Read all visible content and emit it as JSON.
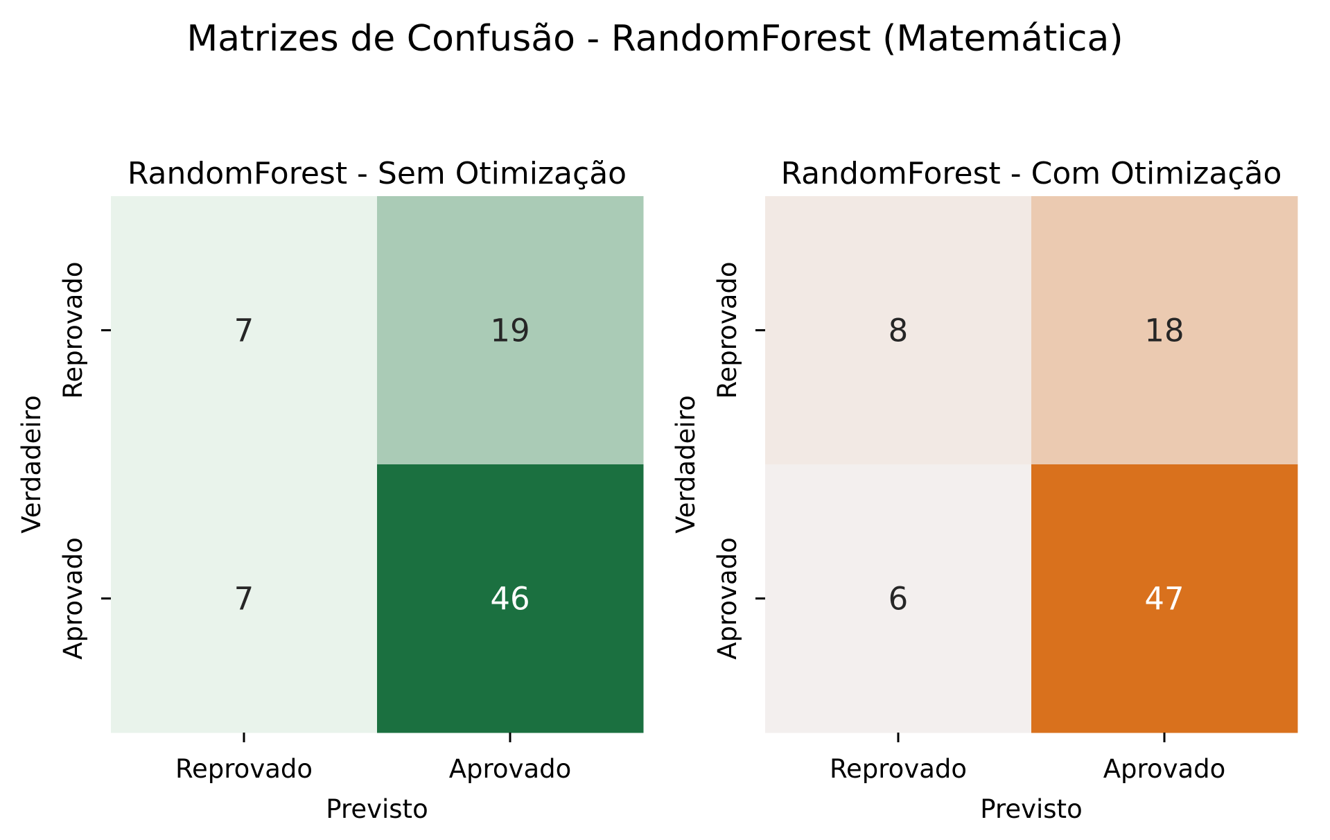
{
  "figure_title": "Matrizes de Confusão - RandomForest (Matemática)",
  "chart_data": [
    {
      "type": "heatmap",
      "title": "RandomForest - Sem Otimização",
      "xlabel": "Previsto",
      "ylabel": "Verdadeiro",
      "x_categories": [
        "Reprovado",
        "Aprovado"
      ],
      "y_categories": [
        "Reprovado",
        "Aprovado"
      ],
      "values": [
        [
          7,
          19
        ],
        [
          7,
          46
        ]
      ],
      "colorscale": {
        "low": "#e9f3eb",
        "high": "#1b7040"
      },
      "colorbar": false,
      "annotated": true
    },
    {
      "type": "heatmap",
      "title": "RandomForest - Com Otimização",
      "xlabel": "Previsto",
      "ylabel": "Verdadeiro",
      "x_categories": [
        "Reprovado",
        "Aprovado"
      ],
      "y_categories": [
        "Reprovado",
        "Aprovado"
      ],
      "values": [
        [
          8,
          18
        ],
        [
          6,
          47
        ]
      ],
      "colorscale": {
        "low": "#f3efee",
        "high": "#d9711d"
      },
      "colorbar": false,
      "annotated": true
    }
  ],
  "colors": {
    "text_dark": "#262626",
    "text_light": "#ffffff"
  }
}
